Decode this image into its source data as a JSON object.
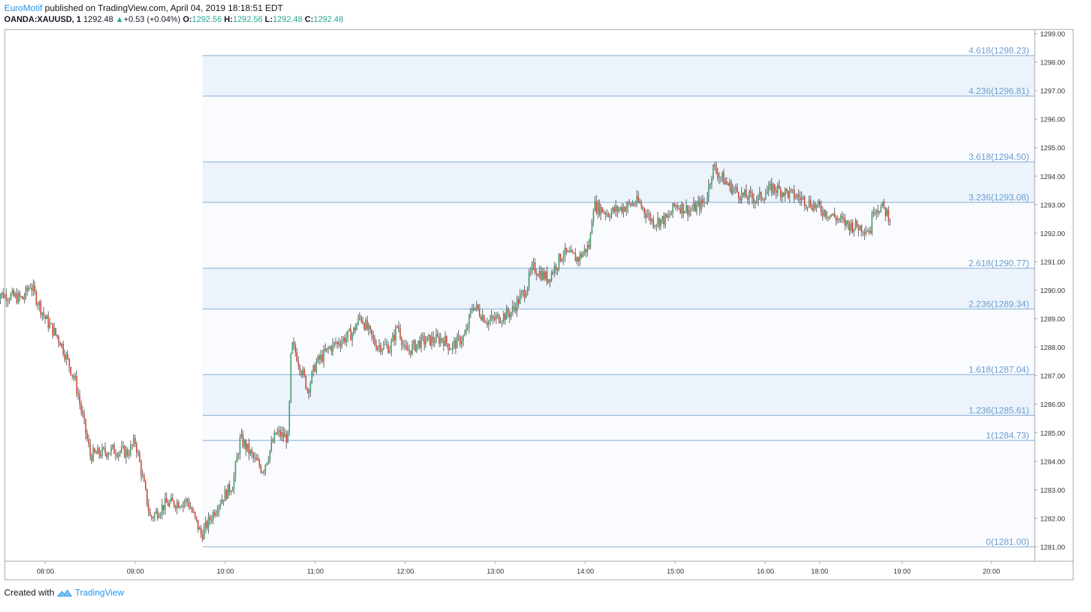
{
  "header": {
    "author": "EuroMotif",
    "published_text": "published on TradingView.com, April 04, 2019 18:18:51 EDT",
    "symbol": "OANDA:XAUUSD, 1",
    "last": "1292.48",
    "change": "+0.53 (+0.04%)",
    "o_label": "O:",
    "o_value": "1292.56",
    "h_label": "H:",
    "h_value": "1292.56",
    "l_label": "L:",
    "l_value": "1292.48",
    "c_label": "C:",
    "c_value": "1292.48"
  },
  "footer": {
    "created_with": "Created with",
    "brand": "TradingView"
  },
  "chart_data": {
    "type": "candlestick",
    "x_ticks": [
      "08:00",
      "09:00",
      "10:00",
      "11:00",
      "12:00",
      "13:00",
      "14:00",
      "15:00",
      "16:00",
      "18:00",
      "19:00",
      "20:00"
    ],
    "y_ticks": [
      "1299.00",
      "1298.00",
      "1297.00",
      "1296.00",
      "1295.00",
      "1294.00",
      "1293.00",
      "1292.00",
      "1291.00",
      "1290.00",
      "1289.00",
      "1288.00",
      "1287.00",
      "1286.00",
      "1285.00",
      "1284.00",
      "1283.00",
      "1282.00",
      "1281.00"
    ],
    "ylim": [
      1280.4,
      1299.3
    ],
    "fib_levels": [
      {
        "label": "4.618(1298.23)",
        "value": 1298.23
      },
      {
        "label": "4.236(1296.81)",
        "value": 1296.81
      },
      {
        "label": "3.618(1294.50)",
        "value": 1294.5
      },
      {
        "label": "3.236(1293.08)",
        "value": 1293.08
      },
      {
        "label": "2.618(1290.77)",
        "value": 1290.77
      },
      {
        "label": "2.236(1289.34)",
        "value": 1289.34
      },
      {
        "label": "1.618(1287.04)",
        "value": 1287.04
      },
      {
        "label": "1.236(1285.61)",
        "value": 1285.61
      },
      {
        "label": "1(1284.73)",
        "value": 1284.73
      },
      {
        "label": "0(1281.00)",
        "value": 1281.0
      }
    ],
    "fib_shaded_bands": [
      [
        1296.81,
        1298.23
      ],
      [
        1293.08,
        1294.5
      ],
      [
        1289.34,
        1290.77
      ],
      [
        1285.61,
        1287.04
      ]
    ],
    "price_path": [
      {
        "t": "07:27",
        "p": 1289.9
      },
      {
        "t": "07:45",
        "p": 1289.7
      },
      {
        "t": "07:50",
        "p": 1290.2
      },
      {
        "t": "08:00",
        "p": 1289.0
      },
      {
        "t": "08:10",
        "p": 1288.2
      },
      {
        "t": "08:20",
        "p": 1286.8
      },
      {
        "t": "08:30",
        "p": 1284.2
      },
      {
        "t": "08:45",
        "p": 1284.4
      },
      {
        "t": "08:55",
        "p": 1284.3
      },
      {
        "t": "09:00",
        "p": 1284.7
      },
      {
        "t": "09:10",
        "p": 1282.0
      },
      {
        "t": "09:20",
        "p": 1282.5
      },
      {
        "t": "09:35",
        "p": 1282.6
      },
      {
        "t": "09:44",
        "p": 1281.4
      },
      {
        "t": "09:55",
        "p": 1282.5
      },
      {
        "t": "10:05",
        "p": 1283.2
      },
      {
        "t": "10:10",
        "p": 1284.8
      },
      {
        "t": "10:20",
        "p": 1284.0
      },
      {
        "t": "10:25",
        "p": 1283.7
      },
      {
        "t": "10:34",
        "p": 1285.0
      },
      {
        "t": "10:42",
        "p": 1284.8
      },
      {
        "t": "10:44",
        "p": 1288.1
      },
      {
        "t": "10:47",
        "p": 1287.8
      },
      {
        "t": "10:55",
        "p": 1286.5
      },
      {
        "t": "11:00",
        "p": 1287.4
      },
      {
        "t": "11:10",
        "p": 1288.0
      },
      {
        "t": "11:25",
        "p": 1288.5
      },
      {
        "t": "11:30",
        "p": 1289.1
      },
      {
        "t": "11:40",
        "p": 1288.1
      },
      {
        "t": "11:50",
        "p": 1288.0
      },
      {
        "t": "11:55",
        "p": 1288.8
      },
      {
        "t": "12:00",
        "p": 1287.8
      },
      {
        "t": "12:10",
        "p": 1288.2
      },
      {
        "t": "12:25",
        "p": 1288.3
      },
      {
        "t": "12:30",
        "p": 1288.0
      },
      {
        "t": "12:40",
        "p": 1288.4
      },
      {
        "t": "12:45",
        "p": 1289.5
      },
      {
        "t": "12:55",
        "p": 1288.9
      },
      {
        "t": "13:10",
        "p": 1289.2
      },
      {
        "t": "13:20",
        "p": 1290.0
      },
      {
        "t": "13:25",
        "p": 1290.8
      },
      {
        "t": "13:35",
        "p": 1290.4
      },
      {
        "t": "13:45",
        "p": 1291.3
      },
      {
        "t": "13:55",
        "p": 1291.1
      },
      {
        "t": "14:03",
        "p": 1291.6
      },
      {
        "t": "14:05",
        "p": 1293.0
      },
      {
        "t": "14:15",
        "p": 1292.7
      },
      {
        "t": "14:30",
        "p": 1293.0
      },
      {
        "t": "14:35",
        "p": 1293.1
      },
      {
        "t": "14:45",
        "p": 1292.4
      },
      {
        "t": "14:55",
        "p": 1292.5
      },
      {
        "t": "15:00",
        "p": 1293.0
      },
      {
        "t": "15:10",
        "p": 1292.8
      },
      {
        "t": "15:20",
        "p": 1293.1
      },
      {
        "t": "15:25",
        "p": 1294.3
      },
      {
        "t": "15:35",
        "p": 1293.7
      },
      {
        "t": "15:45",
        "p": 1293.3
      },
      {
        "t": "15:55",
        "p": 1293.2
      },
      {
        "t": "16:05",
        "p": 1293.6
      },
      {
        "t": "16:15",
        "p": 1293.4
      },
      {
        "t": "16:25",
        "p": 1293.2
      },
      {
        "t": "16:35",
        "p": 1292.9
      },
      {
        "t": "16:45",
        "p": 1292.6
      },
      {
        "t": "16:55",
        "p": 1292.3
      },
      {
        "t": "17:05",
        "p": 1292.2
      },
      {
        "t": "17:10",
        "p": 1292.1
      },
      {
        "t": "17:12",
        "p": 1292.9
      },
      {
        "t": "17:18",
        "p": 1292.9
      },
      {
        "t": "17:24",
        "p": 1292.5
      }
    ]
  }
}
